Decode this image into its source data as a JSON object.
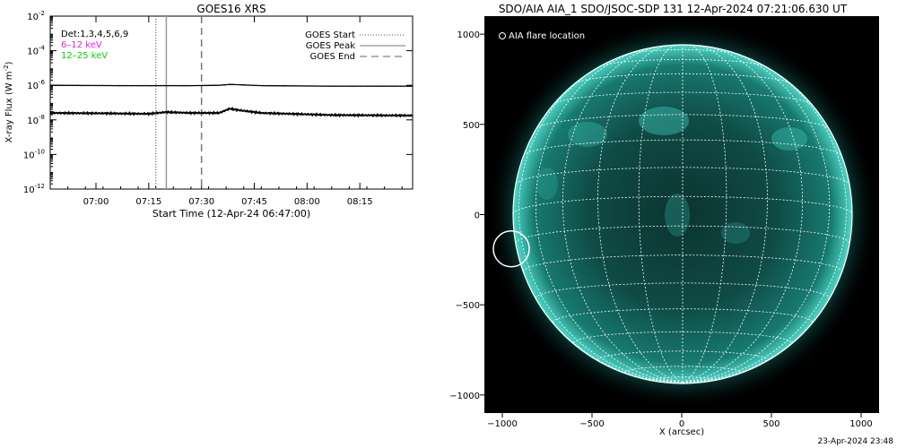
{
  "chart_data": [
    {
      "type": "line",
      "title": "GOES16 XRS",
      "xlabel": "Start Time (12-Apr-24 06:47:00)",
      "ylabel": "X-ray Flux (W m",
      "ylabel_sup": "-2",
      "ylabel_close": ")",
      "y_scale": "log",
      "ylim_exp": [
        -12,
        -2
      ],
      "ytick_exps": [
        -12,
        -10,
        -8,
        -6,
        -4,
        -2
      ],
      "ytick_base": "10",
      "xlim_min": [
        0,
        103
      ],
      "xticks": [
        {
          "label": "07:00",
          "min": 13
        },
        {
          "label": "07:15",
          "min": 28
        },
        {
          "label": "07:30",
          "min": 43
        },
        {
          "label": "07:45",
          "min": 58
        },
        {
          "label": "08:00",
          "min": 73
        },
        {
          "label": "08:15",
          "min": 88
        }
      ],
      "annotations": {
        "channels": "Det:1,3,4,5,6,9",
        "band_low": "6–12 keV",
        "band_high": "12–25 keV"
      },
      "legend": [
        {
          "label": "GOES Start",
          "style": "dotted"
        },
        {
          "label": "GOES Peak",
          "style": "solid"
        },
        {
          "label": "GOES End",
          "style": "dashed"
        }
      ],
      "markers_min": {
        "start": 30,
        "peak": 33,
        "end": 43
      },
      "series": [
        {
          "band": "low",
          "values_exp": [
            [
              0,
              -6.0
            ],
            [
              20,
              -6.02
            ],
            [
              40,
              -6.02
            ],
            [
              48,
              -6.0
            ],
            [
              51,
              -5.95
            ],
            [
              54,
              -5.97
            ],
            [
              60,
              -6.02
            ],
            [
              80,
              -6.05
            ],
            [
              103,
              -6.05
            ]
          ]
        },
        {
          "band": "high",
          "values_exp": [
            [
              0,
              -7.6
            ],
            [
              15,
              -7.62
            ],
            [
              28,
              -7.65
            ],
            [
              33,
              -7.55
            ],
            [
              40,
              -7.6
            ],
            [
              48,
              -7.6
            ],
            [
              51,
              -7.35
            ],
            [
              54,
              -7.45
            ],
            [
              60,
              -7.6
            ],
            [
              80,
              -7.72
            ],
            [
              103,
              -7.75
            ]
          ]
        }
      ],
      "legend_position": "top-right",
      "colors": {
        "band_low": "#e01ee0",
        "band_high": "#00d000"
      }
    },
    {
      "type": "image",
      "title": "SDO/AIA AIA_1 SDO/JSOC-SDP 131 12-Apr-2024 07:21:06.630 UT",
      "xlabel": "X (arcsec)",
      "xlim": [
        -1100,
        1100
      ],
      "ylim": [
        -1100,
        1100
      ],
      "xticks": [
        -1000,
        -500,
        0,
        500,
        1000
      ],
      "yticks": [
        -1000,
        -500,
        0,
        500,
        1000
      ],
      "legend": "AIA flare location",
      "flare_location": {
        "x": -950,
        "y": -190
      },
      "colors": {
        "disk": "#1a9e92",
        "grid": "#ffffff"
      }
    }
  ],
  "footer": {
    "timestamp": "23-Apr-2024 23:48"
  }
}
